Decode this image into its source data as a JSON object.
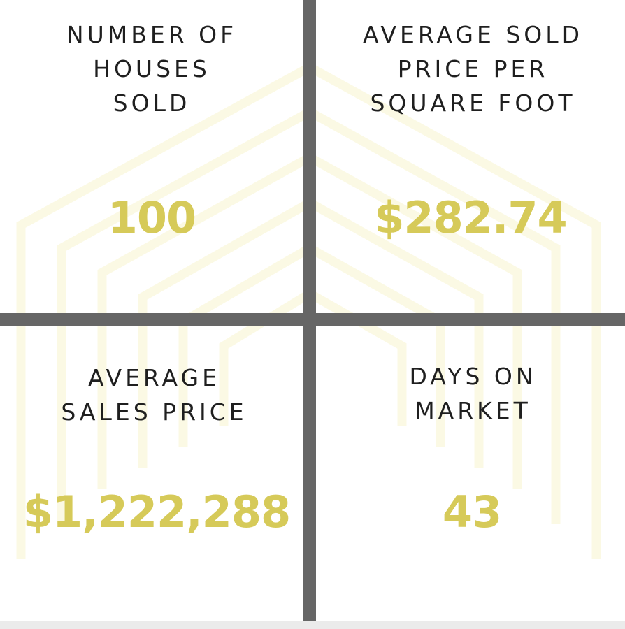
{
  "accent_color": "#d6ca59",
  "text_color": "#1f1f1f",
  "divider_color": "#666666",
  "background_icon": "house-outline-pattern-icon",
  "stats": {
    "houses_sold": {
      "label_lines": [
        "NUMBER OF",
        "HOUSES",
        "SOLD"
      ],
      "value": "100"
    },
    "price_per_sqft": {
      "label_lines": [
        "AVERAGE SOLD",
        "PRICE PER",
        "SQUARE FOOT"
      ],
      "value": "$282.74"
    },
    "avg_sales_price": {
      "label_lines": [
        "AVERAGE",
        "SALES PRICE"
      ],
      "value": "$1,222,288"
    },
    "days_on_market": {
      "label_lines": [
        "DAYS ON",
        "MARKET"
      ],
      "value": "43"
    }
  }
}
